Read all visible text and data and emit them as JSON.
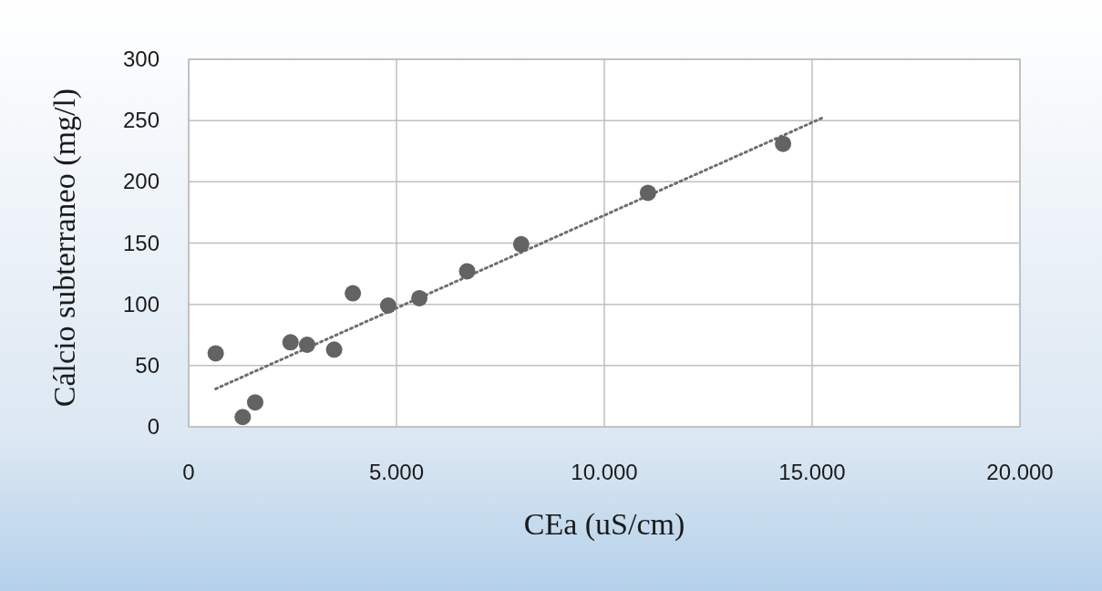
{
  "chart_data": {
    "type": "scatter",
    "xlabel": "CEa (uS/cm)",
    "ylabel": "Cálcio subterraneo (mg/l)",
    "xlim": [
      0,
      20000
    ],
    "ylim": [
      0,
      300
    ],
    "xticks": [
      0,
      {
        "value": 5000,
        "label": "5.000"
      },
      {
        "value": 10000,
        "label": "10.000"
      },
      {
        "value": 15000,
        "label": "15.000"
      },
      {
        "value": 20000,
        "label": "20.000"
      }
    ],
    "yticks": [
      0,
      50,
      100,
      150,
      200,
      250,
      300
    ],
    "grid": true,
    "series": [
      {
        "marker": "circle",
        "color": "#636363",
        "x": [
          650,
          1300,
          1600,
          2450,
          2850,
          3500,
          3950,
          4800,
          5550,
          6700,
          8000,
          11050,
          14300
        ],
        "values": [
          60,
          8,
          20,
          69,
          67,
          63,
          109,
          99,
          105,
          127,
          149,
          191,
          231
        ]
      },
      {
        "type": "line",
        "color": "#6e6e6e",
        "line_style": "dotted",
        "marker": "none",
        "x": [
          650,
          15300
        ],
        "values": [
          31,
          253
        ]
      }
    ]
  }
}
